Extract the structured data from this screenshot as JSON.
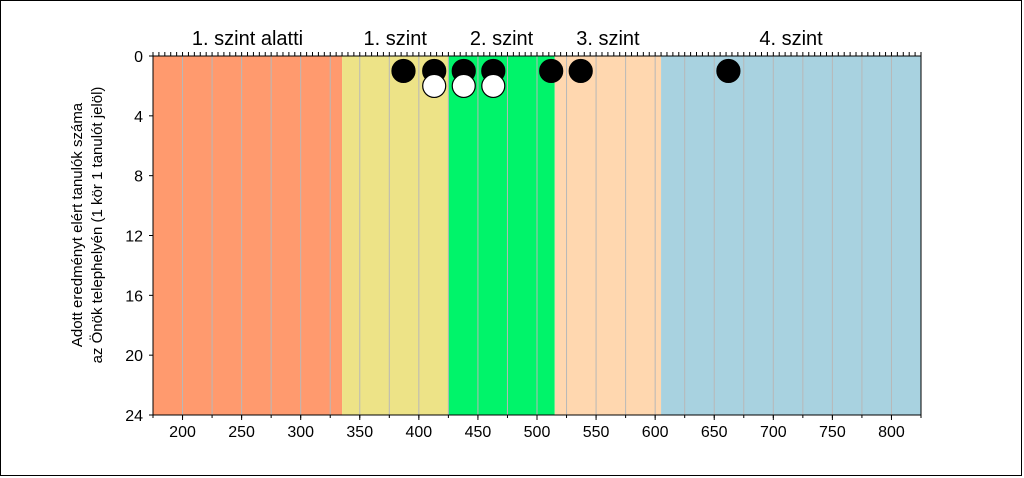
{
  "chart_data": {
    "type": "scatter",
    "title": "",
    "xlabel": "",
    "ylabel": "Adott eredményt elért tanulók száma",
    "ylabel2": "az Önök telephelyén (1 kör 1 tanulót jelöl)",
    "xlim": [
      175,
      825
    ],
    "ylim": [
      0,
      24
    ],
    "y_inverted": true,
    "x_ticks": [
      200,
      250,
      300,
      350,
      400,
      450,
      500,
      550,
      600,
      650,
      700,
      750,
      800
    ],
    "x_tick_labels": [
      "200",
      "250",
      "300",
      "350",
      "400",
      "450",
      "500",
      "550",
      "600",
      "650",
      "700",
      "750",
      "800"
    ],
    "y_ticks": [
      0,
      4,
      8,
      12,
      16,
      20,
      24
    ],
    "y_tick_labels": [
      "0",
      "4",
      "8",
      "12",
      "16",
      "20",
      "24"
    ],
    "grid": true,
    "bands": [
      {
        "label": "1. szint alatti",
        "x_start": 175,
        "x_end": 335,
        "color": "#FF9A6E"
      },
      {
        "label": "1. szint",
        "x_start": 335,
        "x_end": 425,
        "color": "#EDE387"
      },
      {
        "label": "2. szint",
        "x_start": 425,
        "x_end": 515,
        "color": "#00F46A"
      },
      {
        "label": "3. szint",
        "x_start": 515,
        "x_end": 605,
        "color": "#FFD7AF"
      },
      {
        "label": "4. szint",
        "x_start": 605,
        "x_end": 825,
        "color": "#A8D2E0"
      }
    ],
    "series": [
      {
        "color": "#000000",
        "points": [
          [
            387,
            1
          ],
          [
            413,
            1
          ],
          [
            438,
            1
          ],
          [
            463,
            1
          ],
          [
            512,
            1
          ],
          [
            537,
            1
          ],
          [
            662,
            1
          ]
        ]
      },
      {
        "color": "#ffffff",
        "points": [
          [
            413,
            2
          ],
          [
            438,
            2
          ],
          [
            463,
            2
          ]
        ]
      }
    ]
  }
}
